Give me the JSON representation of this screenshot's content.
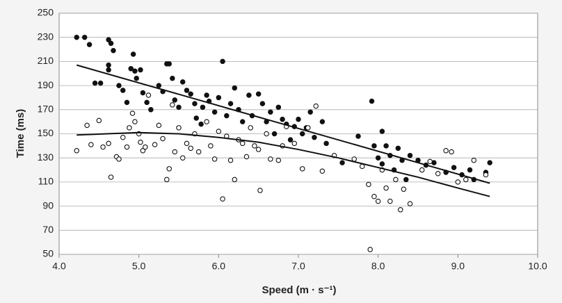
{
  "chart_data": {
    "type": "scatter",
    "xlabel": "Speed (m · s⁻¹)",
    "ylabel": "Time (ms)",
    "xlim": [
      4,
      10
    ],
    "ylim": [
      50,
      250
    ],
    "xticks": [
      {
        "value": 4,
        "label": "4.0"
      },
      {
        "value": 5,
        "label": "5.0"
      },
      {
        "value": 6,
        "label": "6.0"
      },
      {
        "value": 7,
        "label": "7.0"
      },
      {
        "value": 8,
        "label": "8.0"
      },
      {
        "value": 9,
        "label": "9.0"
      },
      {
        "value": 10,
        "label": "10.0"
      }
    ],
    "yticks": [
      50,
      70,
      90,
      110,
      130,
      150,
      170,
      190,
      210,
      230,
      250
    ],
    "grid": true,
    "series": [
      {
        "type": "scatter",
        "color": "#111111",
        "edgecolor": "#111111",
        "x": [
          4.22,
          4.32,
          4.38,
          4.45,
          4.52,
          4.62,
          4.65,
          4.68,
          4.62,
          4.62,
          4.75,
          4.8,
          4.85,
          4.9,
          4.93,
          4.95,
          4.97,
          5.02,
          5.05,
          5.1,
          5.15,
          5.25,
          5.3,
          5.35,
          5.38,
          5.42,
          5.45,
          5.5,
          5.55,
          5.6,
          5.65,
          5.7,
          5.72,
          5.78,
          5.8,
          5.85,
          5.88,
          5.95,
          6.05,
          6.0,
          6.1,
          6.15,
          6.2,
          6.25,
          6.3,
          6.38,
          6.42,
          6.5,
          6.55,
          6.6,
          6.65,
          6.7,
          6.75,
          6.8,
          6.85,
          6.9,
          6.95,
          7.0,
          7.05,
          7.1,
          7.15,
          7.2,
          7.3,
          7.35,
          7.55,
          7.75,
          7.92,
          7.95,
          8.0,
          8.05,
          8.05,
          8.1,
          8.15,
          8.2,
          8.25,
          8.3,
          8.35,
          8.4,
          8.5,
          8.6,
          8.7,
          8.85,
          8.95,
          9.05,
          9.15,
          9.2,
          9.35,
          9.4
        ],
        "values": [
          230,
          230,
          224,
          192,
          192,
          228,
          225,
          219,
          207,
          203,
          190,
          186,
          176,
          204,
          216,
          202,
          196,
          203,
          184,
          176,
          170,
          190,
          185,
          208,
          208,
          196,
          178,
          172,
          193,
          186,
          183,
          175,
          163,
          158,
          172,
          182,
          177,
          168,
          210,
          180,
          165,
          175,
          188,
          170,
          160,
          182,
          165,
          183,
          175,
          160,
          168,
          150,
          172,
          162,
          158,
          145,
          156,
          162,
          150,
          155,
          168,
          147,
          160,
          142,
          126,
          148,
          177,
          140,
          130,
          125,
          152,
          140,
          132,
          120,
          138,
          128,
          112,
          132,
          128,
          124,
          126,
          118,
          122,
          116,
          120,
          112,
          118,
          126
        ]
      },
      {
        "type": "scatter",
        "color": "#ffffff",
        "edgecolor": "#111111",
        "x": [
          4.22,
          4.35,
          4.4,
          4.5,
          4.55,
          4.62,
          4.65,
          4.72,
          4.75,
          4.8,
          4.85,
          4.88,
          4.92,
          4.95,
          5.0,
          5.02,
          5.05,
          5.08,
          5.12,
          5.2,
          5.25,
          5.3,
          5.35,
          5.38,
          5.42,
          5.45,
          5.5,
          5.55,
          5.6,
          5.65,
          5.7,
          5.75,
          5.85,
          5.9,
          5.95,
          6.0,
          6.05,
          6.1,
          6.15,
          6.2,
          6.25,
          6.3,
          6.35,
          6.4,
          6.45,
          6.5,
          6.52,
          6.6,
          6.65,
          6.75,
          6.8,
          6.85,
          6.95,
          7.05,
          7.12,
          7.22,
          7.3,
          7.45,
          7.7,
          7.8,
          7.88,
          7.9,
          7.95,
          8.0,
          8.05,
          8.1,
          8.15,
          8.22,
          8.28,
          8.32,
          8.4,
          8.55,
          8.65,
          8.75,
          8.85,
          8.92,
          9.0,
          9.1,
          9.2,
          9.35
        ],
        "values": [
          136,
          157,
          141,
          161,
          139,
          142,
          114,
          131,
          129,
          147,
          139,
          155,
          167,
          160,
          150,
          143,
          136,
          139,
          182,
          141,
          157,
          146,
          112,
          121,
          174,
          135,
          155,
          130,
          142,
          138,
          150,
          135,
          160,
          140,
          129,
          152,
          96,
          148,
          128,
          112,
          145,
          142,
          131,
          155,
          140,
          137,
          103,
          150,
          129,
          128,
          140,
          156,
          142,
          121,
          155,
          173,
          119,
          132,
          129,
          123,
          108,
          54,
          98,
          94,
          120,
          105,
          94,
          112,
          87,
          104,
          92,
          120,
          127,
          117,
          136,
          135,
          110,
          112,
          128,
          116
        ]
      },
      {
        "type": "line",
        "color": "#111111",
        "x": [
          4.22,
          9.4
        ],
        "values": [
          207,
          109
        ]
      },
      {
        "type": "line",
        "color": "#111111",
        "x": [
          4.22,
          4.6,
          5.0,
          5.5,
          6.0,
          6.5,
          7.0,
          7.5,
          8.0,
          8.5,
          9.0,
          9.4
        ],
        "values": [
          149,
          150,
          151,
          150,
          147,
          143,
          137,
          130,
          122,
          114,
          105,
          98
        ]
      }
    ]
  }
}
